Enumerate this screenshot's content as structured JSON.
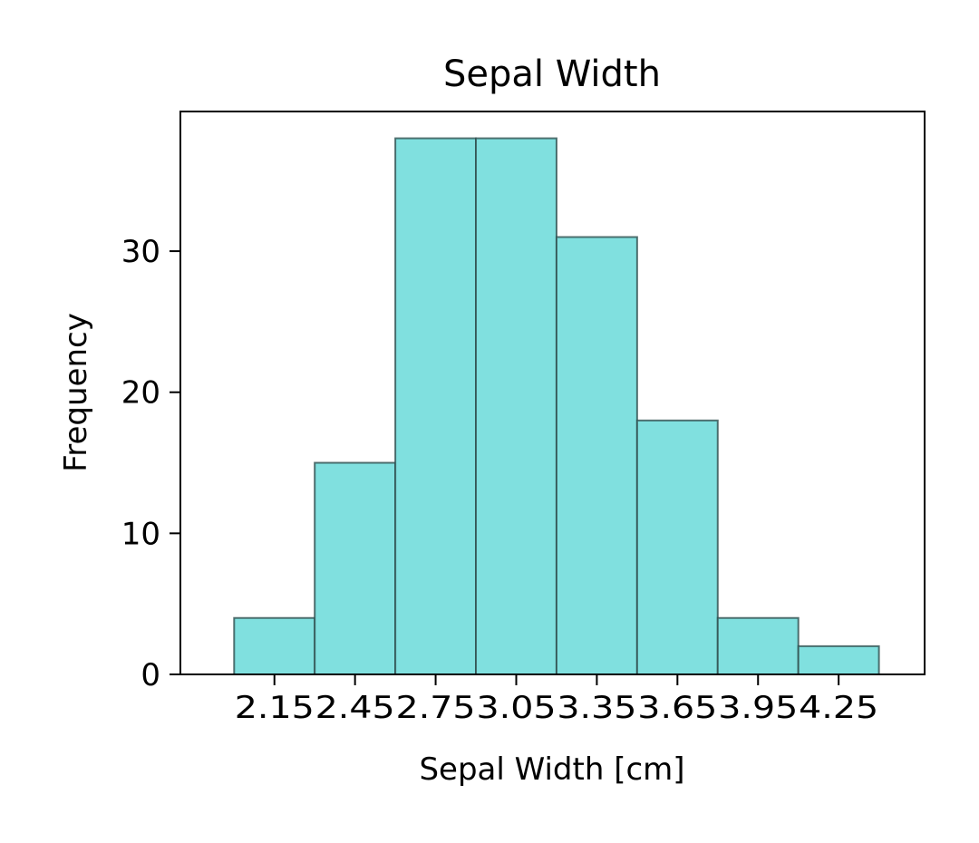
{
  "chart_data": {
    "type": "bar",
    "title": "Sepal Width",
    "xlabel": "Sepal Width [cm]",
    "ylabel": "Frequency",
    "bin_edges": [
      2.0,
      2.3,
      2.6,
      2.9,
      3.2,
      3.5,
      3.8,
      4.1,
      4.4
    ],
    "values": [
      4,
      15,
      38,
      38,
      31,
      18,
      4,
      2
    ],
    "xticks": [
      "2.15",
      "2.45",
      "2.75",
      "3.05",
      "3.35",
      "3.65",
      "3.95",
      "4.25"
    ],
    "yticks": [
      "0",
      "10",
      "20",
      "30"
    ],
    "xlim": [
      1.8,
      4.57
    ],
    "ylim": [
      0,
      39.9
    ],
    "grid": false,
    "bar_color": "#80e0df",
    "edge_color": "#2f4f4f"
  }
}
